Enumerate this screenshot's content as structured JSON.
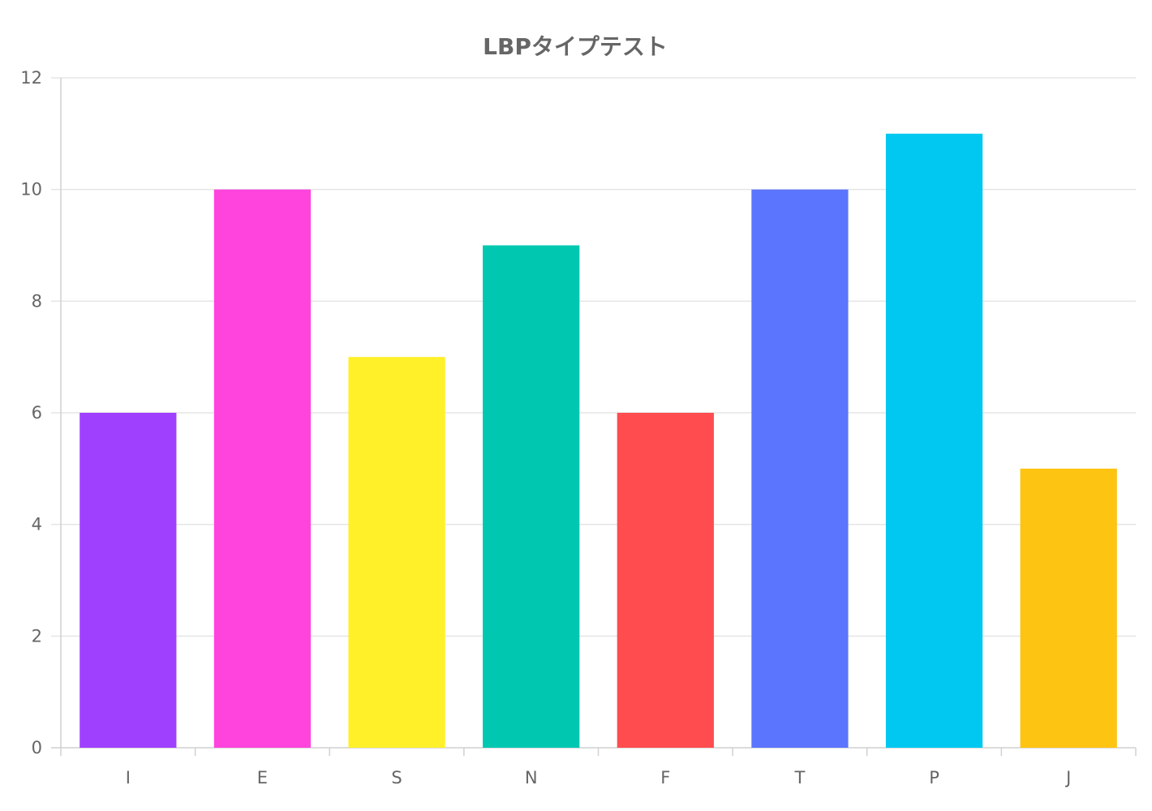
{
  "chart_data": {
    "type": "bar",
    "title": "LBPタイプテスト",
    "xlabel": "",
    "ylabel": "",
    "categories": [
      "I",
      "E",
      "S",
      "N",
      "F",
      "T",
      "P",
      "J"
    ],
    "values": [
      6,
      10,
      7,
      9,
      6,
      10,
      11,
      5
    ],
    "colors": [
      "#a040ff",
      "#ff44dd",
      "#fff02a",
      "#00c8b0",
      "#ff4d4f",
      "#5b75ff",
      "#00c8f0",
      "#fdc411"
    ],
    "ylim": [
      0,
      12
    ],
    "yticks": [
      0,
      2,
      4,
      6,
      8,
      10,
      12
    ],
    "grid": true,
    "legend": "none"
  }
}
